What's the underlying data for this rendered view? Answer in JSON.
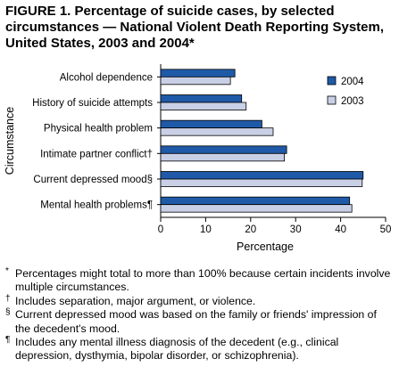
{
  "title": {
    "line1": "FIGURE 1. Percentage of suicide cases, by selected",
    "line2": "circumstances — National Violent Death Reporting System,",
    "line3": "United States, 2003 and 2004*"
  },
  "chart_data": {
    "type": "bar",
    "orientation": "horizontal",
    "categories": [
      "Alcohol dependence",
      "History of suicide attempts",
      "Physical health problem",
      "Intimate partner conflict†",
      "Current depressed mood§",
      "Mental health problems¶"
    ],
    "series": [
      {
        "name": "2004",
        "values": [
          16.5,
          18,
          22.5,
          28,
          45,
          42
        ],
        "color": "#1f5aa8"
      },
      {
        "name": "2003",
        "values": [
          15.5,
          19,
          25,
          27.5,
          44.8,
          42.5
        ],
        "color": "#c9d0e6"
      }
    ],
    "xlabel": "Percentage",
    "ylabel": "Circumstance",
    "xlim": [
      0,
      50
    ],
    "xticks": [
      "0",
      "10",
      "20",
      "30",
      "40",
      "50"
    ],
    "grid": false,
    "legend": "top-right"
  },
  "footnotes": [
    {
      "mark": "*",
      "text": "Percentages might total to more than 100% because certain incidents involve multiple circumstances."
    },
    {
      "mark": "†",
      "text": "Includes separation, major argument, or violence."
    },
    {
      "mark": "§",
      "text": "Current depressed mood was based on the family or friends' impression of the decedent's mood."
    },
    {
      "mark": "¶",
      "text": "Includes any mental illness diagnosis of the decedent (e.g., clinical depression, dysthymia, bipolar disorder, or schizophrenia)."
    }
  ]
}
